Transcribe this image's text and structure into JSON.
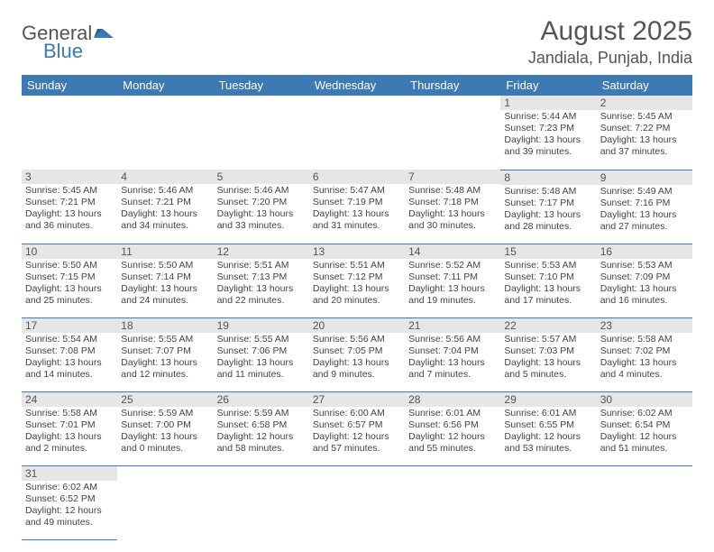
{
  "brand": {
    "text1": "General",
    "text2": "Blue",
    "icon_color": "#3d79b3",
    "text1_color": "#555555"
  },
  "title": "August 2025",
  "subtitle": "Jandiala, Punjab, India",
  "header_bg": "#3d79b3",
  "header_fg": "#ffffff",
  "daynum_bg": "#e6e6e6",
  "divider_color": "#3d79b3",
  "days_of_week": [
    "Sunday",
    "Monday",
    "Tuesday",
    "Wednesday",
    "Thursday",
    "Friday",
    "Saturday"
  ],
  "first_weekday_index": 5,
  "days": [
    {
      "n": 1,
      "sunrise": "5:44 AM",
      "sunset": "7:23 PM",
      "dl_h": 13,
      "dl_m": 39
    },
    {
      "n": 2,
      "sunrise": "5:45 AM",
      "sunset": "7:22 PM",
      "dl_h": 13,
      "dl_m": 37
    },
    {
      "n": 3,
      "sunrise": "5:45 AM",
      "sunset": "7:21 PM",
      "dl_h": 13,
      "dl_m": 36
    },
    {
      "n": 4,
      "sunrise": "5:46 AM",
      "sunset": "7:21 PM",
      "dl_h": 13,
      "dl_m": 34
    },
    {
      "n": 5,
      "sunrise": "5:46 AM",
      "sunset": "7:20 PM",
      "dl_h": 13,
      "dl_m": 33
    },
    {
      "n": 6,
      "sunrise": "5:47 AM",
      "sunset": "7:19 PM",
      "dl_h": 13,
      "dl_m": 31
    },
    {
      "n": 7,
      "sunrise": "5:48 AM",
      "sunset": "7:18 PM",
      "dl_h": 13,
      "dl_m": 30
    },
    {
      "n": 8,
      "sunrise": "5:48 AM",
      "sunset": "7:17 PM",
      "dl_h": 13,
      "dl_m": 28
    },
    {
      "n": 9,
      "sunrise": "5:49 AM",
      "sunset": "7:16 PM",
      "dl_h": 13,
      "dl_m": 27
    },
    {
      "n": 10,
      "sunrise": "5:50 AM",
      "sunset": "7:15 PM",
      "dl_h": 13,
      "dl_m": 25
    },
    {
      "n": 11,
      "sunrise": "5:50 AM",
      "sunset": "7:14 PM",
      "dl_h": 13,
      "dl_m": 24
    },
    {
      "n": 12,
      "sunrise": "5:51 AM",
      "sunset": "7:13 PM",
      "dl_h": 13,
      "dl_m": 22
    },
    {
      "n": 13,
      "sunrise": "5:51 AM",
      "sunset": "7:12 PM",
      "dl_h": 13,
      "dl_m": 20
    },
    {
      "n": 14,
      "sunrise": "5:52 AM",
      "sunset": "7:11 PM",
      "dl_h": 13,
      "dl_m": 19
    },
    {
      "n": 15,
      "sunrise": "5:53 AM",
      "sunset": "7:10 PM",
      "dl_h": 13,
      "dl_m": 17
    },
    {
      "n": 16,
      "sunrise": "5:53 AM",
      "sunset": "7:09 PM",
      "dl_h": 13,
      "dl_m": 16
    },
    {
      "n": 17,
      "sunrise": "5:54 AM",
      "sunset": "7:08 PM",
      "dl_h": 13,
      "dl_m": 14
    },
    {
      "n": 18,
      "sunrise": "5:55 AM",
      "sunset": "7:07 PM",
      "dl_h": 13,
      "dl_m": 12
    },
    {
      "n": 19,
      "sunrise": "5:55 AM",
      "sunset": "7:06 PM",
      "dl_h": 13,
      "dl_m": 11
    },
    {
      "n": 20,
      "sunrise": "5:56 AM",
      "sunset": "7:05 PM",
      "dl_h": 13,
      "dl_m": 9
    },
    {
      "n": 21,
      "sunrise": "5:56 AM",
      "sunset": "7:04 PM",
      "dl_h": 13,
      "dl_m": 7
    },
    {
      "n": 22,
      "sunrise": "5:57 AM",
      "sunset": "7:03 PM",
      "dl_h": 13,
      "dl_m": 5
    },
    {
      "n": 23,
      "sunrise": "5:58 AM",
      "sunset": "7:02 PM",
      "dl_h": 13,
      "dl_m": 4
    },
    {
      "n": 24,
      "sunrise": "5:58 AM",
      "sunset": "7:01 PM",
      "dl_h": 13,
      "dl_m": 2
    },
    {
      "n": 25,
      "sunrise": "5:59 AM",
      "sunset": "7:00 PM",
      "dl_h": 13,
      "dl_m": 0
    },
    {
      "n": 26,
      "sunrise": "5:59 AM",
      "sunset": "6:58 PM",
      "dl_h": 12,
      "dl_m": 58
    },
    {
      "n": 27,
      "sunrise": "6:00 AM",
      "sunset": "6:57 PM",
      "dl_h": 12,
      "dl_m": 57
    },
    {
      "n": 28,
      "sunrise": "6:01 AM",
      "sunset": "6:56 PM",
      "dl_h": 12,
      "dl_m": 55
    },
    {
      "n": 29,
      "sunrise": "6:01 AM",
      "sunset": "6:55 PM",
      "dl_h": 12,
      "dl_m": 53
    },
    {
      "n": 30,
      "sunrise": "6:02 AM",
      "sunset": "6:54 PM",
      "dl_h": 12,
      "dl_m": 51
    },
    {
      "n": 31,
      "sunrise": "6:02 AM",
      "sunset": "6:52 PM",
      "dl_h": 12,
      "dl_m": 49
    }
  ],
  "labels": {
    "sunrise_prefix": "Sunrise: ",
    "sunset_prefix": "Sunset: ",
    "daylight_prefix": "Daylight: ",
    "hours_word": " hours",
    "and_word": "and ",
    "minutes_word": " minutes."
  }
}
